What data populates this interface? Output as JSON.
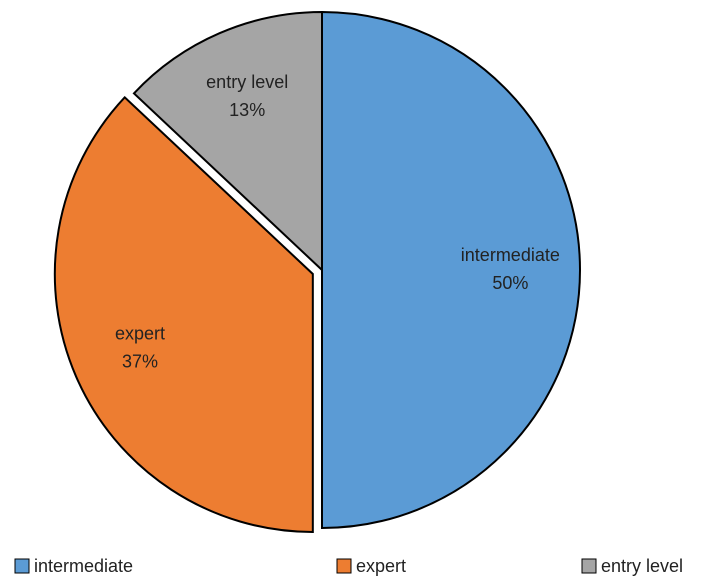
{
  "chart_data": {
    "type": "pie",
    "categories": [
      "intermediate",
      "expert",
      "entry level"
    ],
    "values": [
      50,
      37,
      13
    ],
    "value_labels": [
      "50%",
      "37%",
      "13%"
    ],
    "colors": [
      "#5b9bd5",
      "#ed7d31",
      "#a5a5a5"
    ],
    "legend": "bottom"
  }
}
